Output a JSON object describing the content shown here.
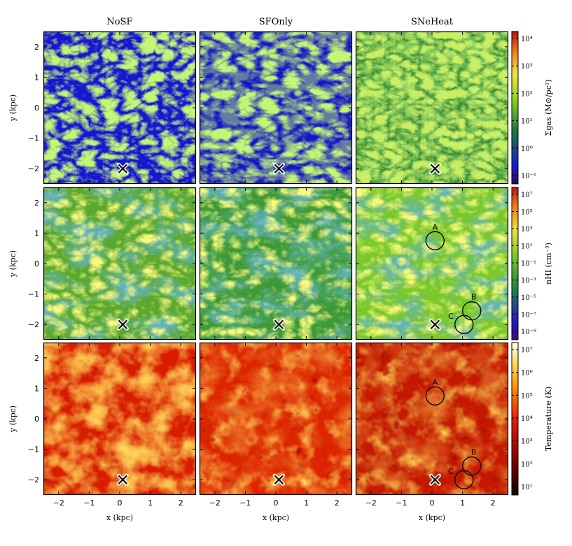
{
  "figure": {
    "columns": [
      "NoSF",
      "SFOnly",
      "SNeHeat"
    ],
    "x_label": "x  (kpc)",
    "y_label": "y  (kpc)",
    "x_ticks": [
      "−2",
      "−1",
      "0",
      "1",
      "2"
    ],
    "y_ticks": [
      "2",
      "1",
      "0",
      "−1",
      "−2"
    ],
    "x_range": [
      -2.5,
      2.5
    ],
    "y_range": [
      -2.5,
      2.5
    ],
    "rows": [
      {
        "quantity": "surface density",
        "colormap": "blue-green-yellow-red",
        "colorbar_label": "Σgas (M⊙/pc²)",
        "colorbar_ticks": [
          "10⁴",
          "10³",
          "10²",
          "10¹",
          "10⁰",
          "10⁻¹"
        ]
      },
      {
        "quantity": "HI number density",
        "colormap": "purple-blue-green-yellow-red",
        "colorbar_label": "nHI (cm⁻³)",
        "colorbar_ticks": [
          "10⁷",
          "10⁵",
          "10³",
          "10¹",
          "10⁻¹",
          "10⁻³",
          "10⁻⁵",
          "10⁻⁷",
          "10⁻⁹"
        ]
      },
      {
        "quantity": "temperature",
        "colormap": "black-red-yellow-white",
        "colorbar_label": "Temperature (K)",
        "colorbar_ticks": [
          "10⁷",
          "10⁶",
          "10⁵",
          "10⁴",
          "10³",
          "10²",
          "10¹"
        ]
      }
    ],
    "center_marker": {
      "symbol": "×",
      "x": 0.1,
      "y": -2.0
    },
    "circled_regions": [
      {
        "label": "A",
        "x": 0.1,
        "y": 0.75
      },
      {
        "label": "B",
        "x": 1.3,
        "y": -1.55
      },
      {
        "label": "C",
        "x": 1.05,
        "y": -2.0
      }
    ]
  }
}
